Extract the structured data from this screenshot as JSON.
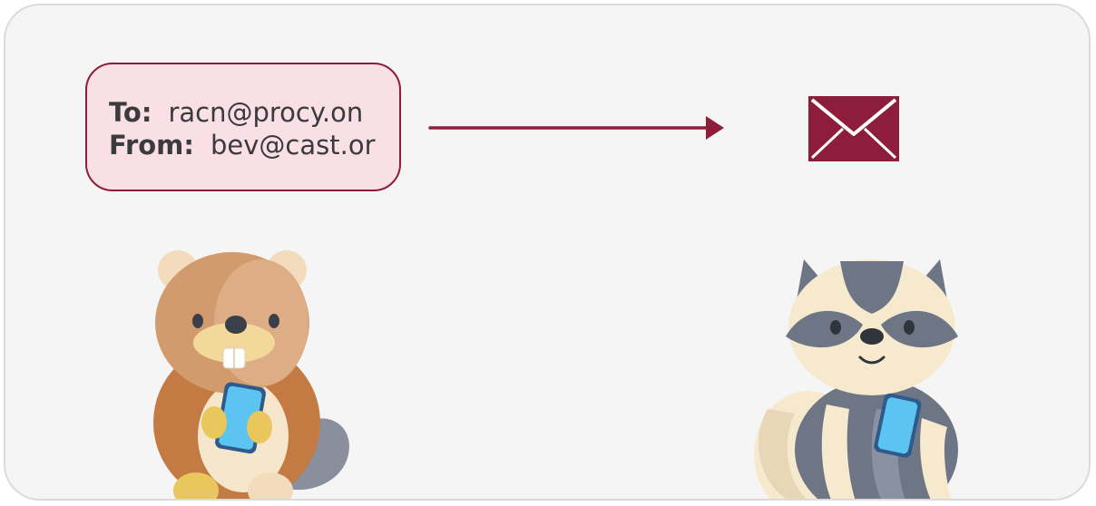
{
  "email": {
    "to_label": "To:",
    "to_value": "racn@procy.on",
    "from_label": "From:",
    "from_value": "bev@cast.or"
  },
  "colors": {
    "accent": "#8e1c3b",
    "box_fill": "#f8e0e6",
    "panel_bg": "#f5f5f5"
  },
  "icons": {
    "arrow": "right-arrow-icon",
    "envelope": "envelope-icon",
    "sender": "beaver-with-phone",
    "recipient": "raccoon-with-phone"
  }
}
